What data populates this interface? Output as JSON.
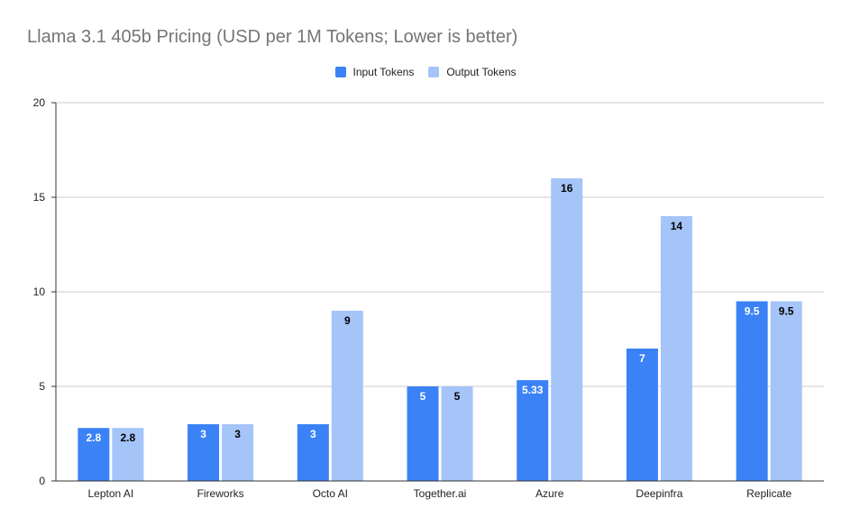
{
  "chart_data": {
    "type": "bar",
    "title": "Llama 3.1 405b Pricing (USD per 1M Tokens; Lower is better)",
    "xlabel": "",
    "ylabel": "",
    "categories": [
      "Lepton AI",
      "Fireworks",
      "Octo AI",
      "Together.ai",
      "Azure",
      "Deepinfra",
      "Replicate"
    ],
    "series": [
      {
        "name": "Input Tokens",
        "color": "#3b82f6",
        "label_color": "#ffffff",
        "values": [
          2.8,
          3,
          3,
          5,
          5.33,
          7,
          9.5
        ]
      },
      {
        "name": "Output Tokens",
        "color": "#a5c4f8",
        "label_color": "#000000",
        "values": [
          2.8,
          3,
          9,
          5,
          16,
          14,
          9.5
        ]
      }
    ],
    "ylim": [
      0,
      20
    ],
    "yticks": [
      0,
      5,
      10,
      15,
      20
    ],
    "grid": true,
    "legend_position": "top"
  }
}
